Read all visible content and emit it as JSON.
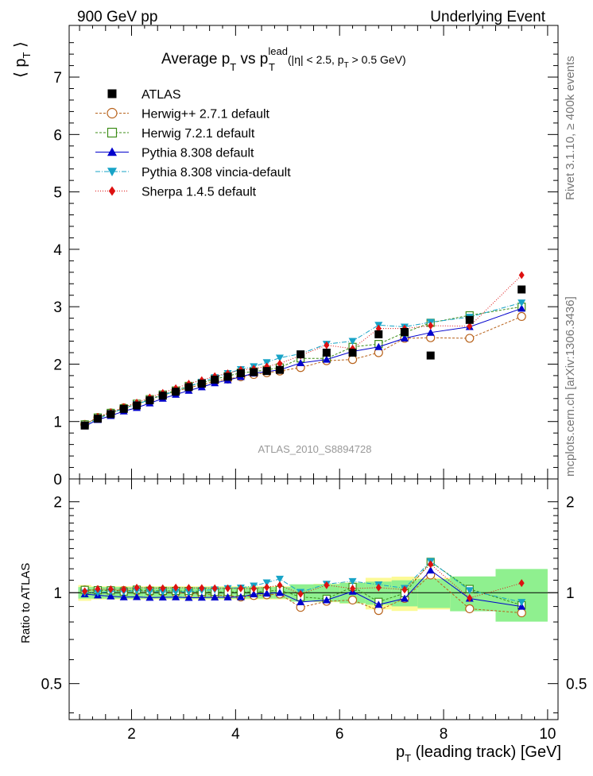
{
  "header": {
    "left": "900 GeV pp",
    "right": "Underlying Event"
  },
  "side_labels": {
    "rivet": "Rivet 3.1.10, ≥ 400k events",
    "mcplots": "mcplots.cern.ch [arXiv:1306.3436]"
  },
  "watermark": "ATLAS_2010_S8894728",
  "title": {
    "main": "Average p",
    "sub_t": "T",
    "vs": " vs p",
    "sup_lead": "lead",
    "sub_t2": "T",
    "cut": "(|η| < 2.5, p",
    "sub_t3": "T",
    "cut2": " > 0.5 GeV)"
  },
  "axes": {
    "y_main_label": "⟨ p",
    "y_main_sub": "T",
    "y_main_close": " ⟩",
    "y_ratio_label": "Ratio to ATLAS",
    "x_label": "p",
    "x_label_sub": "T",
    "x_label_rest": " (leading track) [GeV]",
    "x_ticks": [
      "2",
      "4",
      "6",
      "8",
      "10"
    ],
    "y_main_ticks": [
      "0",
      "1",
      "2",
      "3",
      "4",
      "5",
      "6",
      "7"
    ],
    "y_ratio_ticks": [
      "0.5",
      "1",
      "2"
    ]
  },
  "colors": {
    "atlas": "#000000",
    "herwigpp": "#b8621b",
    "herwig7": "#3c8c17",
    "pythia": "#0000cc",
    "vincia": "#17a3c7",
    "sherpa": "#dd1111",
    "band_green": "#8ff08f",
    "band_yellow": "#fcfa95"
  },
  "chart_data": {
    "type": "scatter",
    "title": "Average pT vs pT lead (|η| < 2.5, pT > 0.5 GeV)",
    "xlabel": "pT (leading track) [GeV]",
    "ylabel": "⟨ pT ⟩",
    "xlim": [
      0.8,
      10.2
    ],
    "ylim": [
      0,
      7.9
    ],
    "ratio_ylim": [
      0.38,
      2.38
    ],
    "ratio_log": true,
    "x": [
      1.1,
      1.35,
      1.6,
      1.85,
      2.1,
      2.35,
      2.6,
      2.85,
      3.1,
      3.35,
      3.6,
      3.85,
      4.1,
      4.35,
      4.6,
      4.85,
      5.25,
      5.75,
      6.25,
      6.75,
      7.25,
      7.75,
      8.5,
      9.5
    ],
    "atlas": {
      "name": "ATLAS",
      "values": [
        0.93,
        1.05,
        1.13,
        1.22,
        1.28,
        1.37,
        1.45,
        1.52,
        1.6,
        1.66,
        1.73,
        1.78,
        1.84,
        1.86,
        1.88,
        1.9,
        2.17,
        2.2,
        2.2,
        2.52,
        2.56,
        2.15,
        2.77,
        3.3
      ],
      "rel_unc_stat": [
        0.02,
        0.02,
        0.02,
        0.02,
        0.02,
        0.02,
        0.02,
        0.02,
        0.02,
        0.02,
        0.02,
        0.02,
        0.02,
        0.02,
        0.02,
        0.02,
        0.03,
        0.03,
        0.035,
        0.04,
        0.045,
        0.05,
        0.06,
        0.09
      ],
      "rel_unc_total": [
        0.06,
        0.05,
        0.05,
        0.05,
        0.05,
        0.05,
        0.05,
        0.05,
        0.05,
        0.05,
        0.05,
        0.05,
        0.05,
        0.05,
        0.05,
        0.05,
        0.06,
        0.07,
        0.08,
        0.12,
        0.13,
        0.12,
        0.13,
        0.19
      ]
    },
    "series": [
      {
        "name": "Herwig++ 2.7.1 default",
        "key": "herwigpp",
        "marker": "circle-open",
        "dash": "3,2",
        "values": [
          0.95,
          1.07,
          1.15,
          1.24,
          1.3,
          1.38,
          1.46,
          1.52,
          1.59,
          1.64,
          1.7,
          1.74,
          1.78,
          1.82,
          1.85,
          1.88,
          1.94,
          2.06,
          2.08,
          2.2,
          2.45,
          2.46,
          2.45,
          2.83
        ]
      },
      {
        "name": "Herwig 7.2.1 default",
        "key": "herwig7",
        "marker": "square-open",
        "dash": "3,2",
        "values": [
          0.95,
          1.07,
          1.15,
          1.23,
          1.31,
          1.39,
          1.47,
          1.54,
          1.62,
          1.67,
          1.74,
          1.79,
          1.85,
          1.87,
          1.9,
          1.94,
          2.1,
          2.1,
          2.3,
          2.35,
          2.55,
          2.72,
          2.85,
          3.0
        ]
      },
      {
        "name": "Pythia 8.308 default",
        "key": "pythia",
        "marker": "triangle-up",
        "dash": "",
        "values": [
          0.92,
          1.03,
          1.1,
          1.18,
          1.24,
          1.32,
          1.4,
          1.47,
          1.54,
          1.6,
          1.67,
          1.72,
          1.78,
          1.84,
          1.87,
          1.9,
          2.02,
          2.08,
          2.22,
          2.3,
          2.45,
          2.55,
          2.65,
          2.97
        ]
      },
      {
        "name": "Pythia 8.308 vincia-default",
        "key": "vincia",
        "marker": "triangle-down",
        "dash": "6,2,1,2",
        "values": [
          0.93,
          1.05,
          1.14,
          1.23,
          1.3,
          1.38,
          1.46,
          1.53,
          1.61,
          1.69,
          1.77,
          1.84,
          1.91,
          1.96,
          2.03,
          2.11,
          2.18,
          2.35,
          2.4,
          2.68,
          2.65,
          2.73,
          2.82,
          3.07
        ]
      },
      {
        "name": "Sherpa 1.4.5 default",
        "key": "sherpa",
        "marker": "diamond",
        "dash": "1,2",
        "values": [
          0.94,
          1.08,
          1.16,
          1.25,
          1.33,
          1.42,
          1.5,
          1.58,
          1.66,
          1.72,
          1.79,
          1.84,
          1.9,
          1.92,
          1.96,
          2.01,
          2.15,
          2.33,
          2.27,
          2.62,
          2.62,
          2.67,
          2.66,
          3.55
        ]
      }
    ]
  }
}
